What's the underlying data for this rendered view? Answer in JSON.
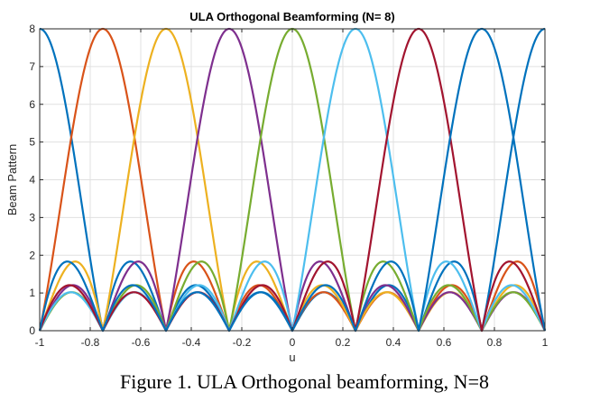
{
  "chart_data": {
    "type": "line",
    "title": "ULA Orthogonal Beamforming (N= 8)",
    "xlabel": "u",
    "ylabel": "Beam Pattern",
    "xlim": [
      -1,
      1
    ],
    "ylim": [
      0,
      8
    ],
    "xticks": [
      -1,
      -0.8,
      -0.6,
      -0.4,
      -0.2,
      0,
      0.2,
      0.4,
      0.6,
      0.8,
      1
    ],
    "xtick_labels": [
      "-1",
      "-0.8",
      "-0.6",
      "-0.4",
      "-0.2",
      "0",
      "0.2",
      "0.4",
      "0.6",
      "0.8",
      "1"
    ],
    "yticks": [
      0,
      1,
      2,
      3,
      4,
      5,
      6,
      7,
      8
    ],
    "ytick_labels": [
      "0",
      "1",
      "2",
      "3",
      "4",
      "5",
      "6",
      "7",
      "8"
    ],
    "grid": true,
    "N": 8,
    "series": [
      {
        "beam_center_u": -1.0,
        "color": "#0072BD"
      },
      {
        "beam_center_u": -0.75,
        "color": "#D95319"
      },
      {
        "beam_center_u": -0.5,
        "color": "#EDB120"
      },
      {
        "beam_center_u": -0.25,
        "color": "#7E2F8E"
      },
      {
        "beam_center_u": 0.0,
        "color": "#77AC30"
      },
      {
        "beam_center_u": 0.25,
        "color": "#4DBEEE"
      },
      {
        "beam_center_u": 0.5,
        "color": "#A2142F"
      },
      {
        "beam_center_u": 0.75,
        "color": "#0072BD"
      }
    ]
  },
  "caption": "Figure 1. ULA Orthogonal beamforming, N=8"
}
